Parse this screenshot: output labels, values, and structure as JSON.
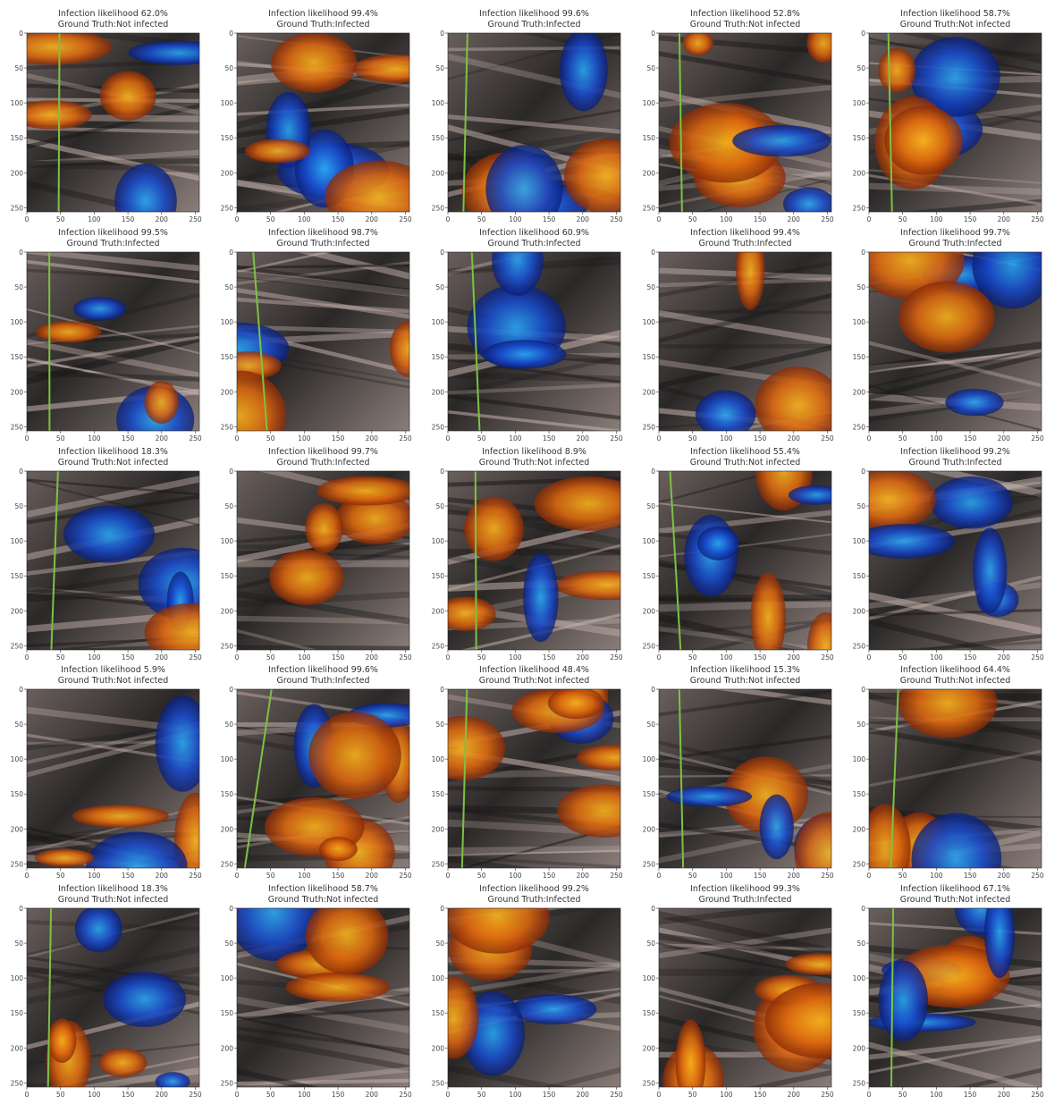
{
  "axes": {
    "xlim": [
      0,
      256
    ],
    "ylim": [
      256,
      0
    ],
    "xticks": [
      0,
      50,
      100,
      150,
      200,
      250
    ],
    "yticks": [
      0,
      50,
      100,
      150,
      200,
      250
    ]
  },
  "panels": [
    {
      "likelihood": "Infection likelihood 62.0%",
      "truth": "Ground Truth:Not infected"
    },
    {
      "likelihood": "Infection likelihood 99.4%",
      "truth": "Ground Truth:Infected"
    },
    {
      "likelihood": "Infection likelihood 99.6%",
      "truth": "Ground Truth:Infected"
    },
    {
      "likelihood": "Infection likelihood 52.8%",
      "truth": "Ground Truth:Not infected"
    },
    {
      "likelihood": "Infection likelihood 58.7%",
      "truth": "Ground Truth:Not infected"
    },
    {
      "likelihood": "Infection likelihood 99.5%",
      "truth": "Ground Truth:Infected"
    },
    {
      "likelihood": "Infection likelihood 98.7%",
      "truth": "Ground Truth:Infected"
    },
    {
      "likelihood": "Infection likelihood 60.9%",
      "truth": "Ground Truth:Infected"
    },
    {
      "likelihood": "Infection likelihood 99.4%",
      "truth": "Ground Truth:Infected"
    },
    {
      "likelihood": "Infection likelihood 99.7%",
      "truth": "Ground Truth:Infected"
    },
    {
      "likelihood": "Infection likelihood 18.3%",
      "truth": "Ground Truth:Not infected"
    },
    {
      "likelihood": "Infection likelihood 99.7%",
      "truth": "Ground Truth:Infected"
    },
    {
      "likelihood": "Infection likelihood 8.9%",
      "truth": "Ground Truth:Not infected"
    },
    {
      "likelihood": "Infection likelihood 55.4%",
      "truth": "Ground Truth:Not infected"
    },
    {
      "likelihood": "Infection likelihood 99.2%",
      "truth": "Ground Truth:Infected"
    },
    {
      "likelihood": "Infection likelihood 5.9%",
      "truth": "Ground Truth:Not infected"
    },
    {
      "likelihood": "Infection likelihood 99.6%",
      "truth": "Ground Truth:Infected"
    },
    {
      "likelihood": "Infection likelihood 48.4%",
      "truth": "Ground Truth:Not infected"
    },
    {
      "likelihood": "Infection likelihood 15.3%",
      "truth": "Ground Truth:Not infected"
    },
    {
      "likelihood": "Infection likelihood 64.4%",
      "truth": "Ground Truth:Not infected"
    },
    {
      "likelihood": "Infection likelihood 18.3%",
      "truth": "Ground Truth:Not infected"
    },
    {
      "likelihood": "Infection likelihood 58.7%",
      "truth": "Ground Truth:Not infected"
    },
    {
      "likelihood": "Infection likelihood 99.2%",
      "truth": "Ground Truth:Infected"
    },
    {
      "likelihood": "Infection likelihood 99.3%",
      "truth": "Ground Truth:Infected"
    },
    {
      "likelihood": "Infection likelihood 67.1%",
      "truth": "Ground Truth:Not infected"
    }
  ]
}
